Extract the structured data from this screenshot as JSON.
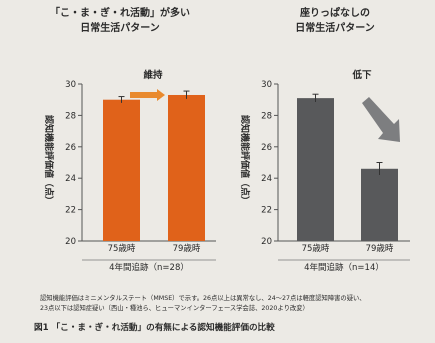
{
  "figure": {
    "footnote_line1": "認知機能評価はミニメンタルステート（MMSE）で示す。26点以上は異常なし、24～27点は軽度認知障害の疑い、",
    "footnote_line2": "23点以下は認知症疑い（西山・種池ら、ヒューマンインターフェース学会誌、2020より改変）",
    "caption": "図1 「こ・ま・ぎ・れ活動」の有無による認知機能評価の比較"
  },
  "chart_data": [
    {
      "type": "bar",
      "title_line1": "「こ・ま・ぎ・れ活動」が多い",
      "title_line2": "日常生活パターン",
      "ylabel": "認知機能評価値（点）",
      "categories": [
        "75歳時",
        "79歳時"
      ],
      "values": [
        29.0,
        29.3
      ],
      "error": [
        0.2,
        0.25
      ],
      "ylim": [
        20,
        30
      ],
      "yticks": [
        "20",
        "22",
        "24",
        "26",
        "28",
        "30"
      ],
      "xgroup_label": "4年間追跡（n=28）",
      "annotation": "維持",
      "bar_color": "#e0621a",
      "annotation_arrow_color": "#e98a2e",
      "grid": false
    },
    {
      "type": "bar",
      "title_line1": "座りっぱなしの",
      "title_line2": "日常生活パターン",
      "ylabel": "認知機能評価値（点）",
      "categories": [
        "75歳時",
        "79歳時"
      ],
      "values": [
        29.1,
        24.6
      ],
      "error": [
        0.25,
        0.4
      ],
      "ylim": [
        20,
        30
      ],
      "yticks": [
        "20",
        "22",
        "24",
        "26",
        "28",
        "30"
      ],
      "xgroup_label": "4年間追跡（n=14）",
      "annotation": "低下",
      "bar_color": "#58595b",
      "annotation_arrow_color": "#7d7e80",
      "grid": false
    }
  ]
}
